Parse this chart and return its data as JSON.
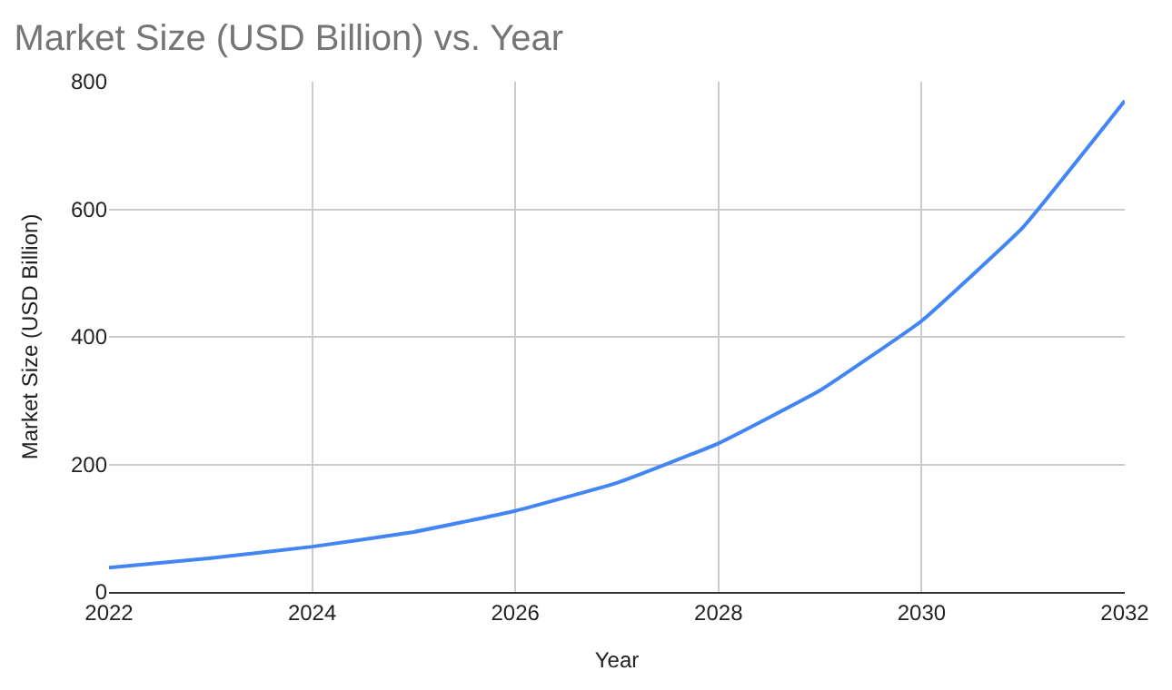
{
  "chart_data": {
    "type": "line",
    "title": "Market Size (USD Billion) vs. Year",
    "xlabel": "Year",
    "ylabel": "Market Size (USD Billion)",
    "x": [
      2022,
      2023,
      2024,
      2025,
      2026,
      2027,
      2028,
      2029,
      2030,
      2031,
      2032
    ],
    "series": [
      {
        "color": "#4285f4",
        "values": [
          38,
          53,
          71,
          94,
          127,
          171,
          233,
          316,
          425,
          572,
          770
        ]
      }
    ],
    "xlim": [
      2022,
      2032
    ],
    "xticks": [
      2022,
      2024,
      2026,
      2028,
      2030,
      2032
    ],
    "ylim": [
      0,
      800
    ],
    "yticks": [
      0,
      200,
      400,
      600,
      800
    ],
    "grid": true,
    "marker": "none",
    "line_style": "solid"
  }
}
